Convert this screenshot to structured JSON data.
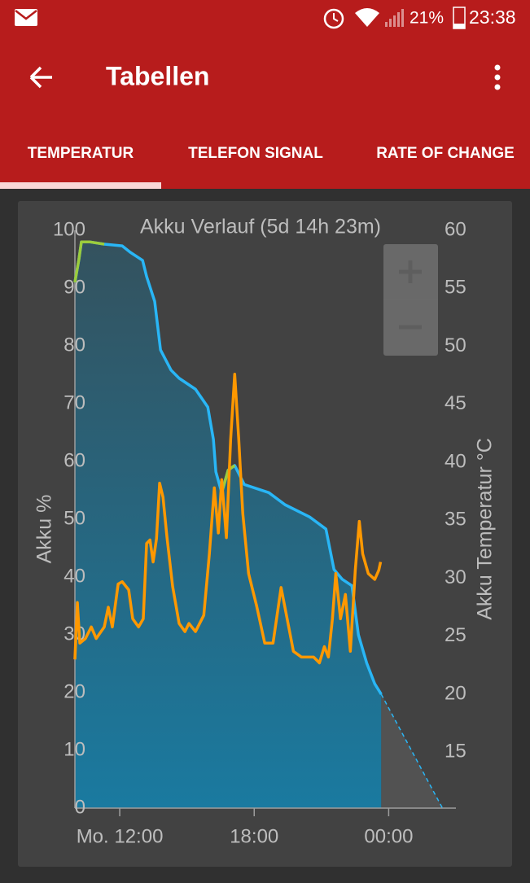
{
  "status_bar": {
    "battery": "21%",
    "time": "23:38"
  },
  "app_bar": {
    "title": "Tabellen"
  },
  "tabs": [
    "TEMPERATUR",
    "TELEFON SIGNAL",
    "RATE OF CHANGE"
  ],
  "chart_data": {
    "type": "line",
    "title": "Akku Verlauf (5d 14h 23m)",
    "y_label": "Akku %",
    "y2_label": "Akku Temperatur °C",
    "xlim": [
      10,
      27
    ],
    "xticks": [
      {
        "value": 12,
        "label": "Mo. 12:00"
      },
      {
        "value": 18,
        "label": "18:00"
      },
      {
        "value": 24,
        "label": "00:00"
      }
    ],
    "ylim": [
      0,
      100
    ],
    "yticks": [
      0,
      10,
      20,
      30,
      40,
      50,
      60,
      70,
      80,
      90,
      100
    ],
    "y2lim": [
      10,
      60
    ],
    "y2ticks": [
      15,
      20,
      25,
      30,
      35,
      40,
      45,
      50,
      55,
      60
    ],
    "series": [
      {
        "color": "#29b6f6",
        "area": true,
        "x": [
          10.0,
          10.18,
          10.29,
          10.65,
          11.31,
          12.11,
          12.47,
          13.02,
          13.2,
          13.56,
          13.82,
          14.29,
          14.65,
          15.38,
          15.93,
          16.18,
          16.29,
          16.55,
          16.84,
          17.13,
          17.56,
          18.65,
          19.38,
          20.47,
          21.2,
          21.56,
          21.93,
          22.36,
          22.65,
          23.02,
          23.38,
          23.67
        ],
        "values": [
          91,
          95,
          98,
          98,
          97.6,
          97.3,
          96.2,
          94.8,
          92,
          87.7,
          79.3,
          75.8,
          74.4,
          72.5,
          69.4,
          63.8,
          58.2,
          54.6,
          58.5,
          59.3,
          56,
          54.6,
          52.5,
          50.4,
          48.3,
          41.3,
          39.6,
          38.5,
          30,
          25.1,
          21.5,
          19.7
        ]
      },
      {
        "color": "#9ccc3c",
        "x": [
          10.0,
          10.18,
          10.29,
          10.65,
          11.31,
          12.11,
          12.47,
          13.02,
          13.2,
          13.56,
          13.82,
          14.29,
          14.65,
          15.38,
          15.93,
          16.18,
          16.29,
          16.55,
          16.84,
          17.13,
          17.56,
          18.65,
          19.38,
          20.47,
          21.2,
          21.56,
          21.93,
          22.36,
          22.65,
          23.02,
          23.38,
          23.67
        ],
        "values": [
          91,
          95,
          98,
          98,
          97.6,
          null,
          null,
          null,
          null,
          null,
          null,
          null,
          null,
          null,
          null,
          null,
          null,
          54.6,
          58.5,
          59.3,
          null,
          null,
          null,
          null,
          null,
          null,
          null,
          null,
          null,
          null,
          null,
          null
        ]
      },
      {
        "color": "#29b6f6",
        "dashed": true,
        "x": [
          23.67,
          26.4
        ],
        "values": [
          19.7,
          0
        ]
      },
      {
        "color": "#ff9800",
        "axis": "y2",
        "x": [
          10.0,
          10.11,
          10.22,
          10.47,
          10.73,
          10.95,
          11.31,
          11.49,
          11.67,
          11.93,
          12.11,
          12.4,
          12.58,
          12.84,
          13.05,
          13.2,
          13.35,
          13.49,
          13.64,
          13.78,
          13.93,
          14.11,
          14.36,
          14.65,
          14.91,
          15.09,
          15.38,
          15.75,
          16.0,
          16.22,
          16.4,
          16.55,
          16.76,
          16.95,
          17.13,
          17.31,
          17.49,
          17.75,
          18.11,
          18.47,
          18.84,
          19.2,
          19.45,
          19.75,
          20.11,
          20.65,
          20.91,
          21.13,
          21.31,
          21.49,
          21.64,
          21.85,
          22.07,
          22.29,
          22.51,
          22.69,
          22.84,
          23.09,
          23.38,
          23.56,
          23.64
        ],
        "values": [
          23,
          27.9,
          24.4,
          24.8,
          25.8,
          24.8,
          25.8,
          27.5,
          25.8,
          29.5,
          29.7,
          29,
          26.5,
          25.8,
          26.5,
          33,
          33.3,
          31.4,
          33.4,
          38.2,
          37,
          33.5,
          29.3,
          26.1,
          25.4,
          26.1,
          25.4,
          26.8,
          32.1,
          37.8,
          33.9,
          38.5,
          33.5,
          42,
          47.6,
          42,
          35.6,
          30.4,
          27.6,
          24.4,
          24.4,
          29.2,
          26.7,
          23.7,
          23.2,
          23.2,
          22.7,
          24.1,
          23.2,
          26.5,
          30.4,
          26.5,
          28.6,
          23.7,
          30.7,
          34.9,
          32.1,
          30.4,
          29.9,
          30.7,
          31.4
        ]
      }
    ]
  }
}
